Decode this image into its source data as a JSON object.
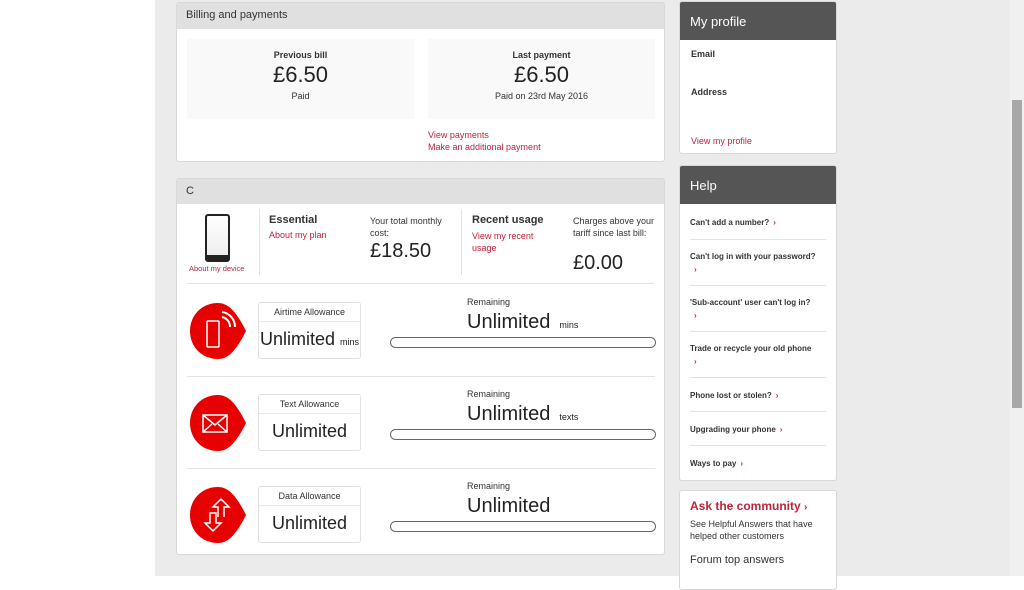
{
  "billing": {
    "title": "Billing and payments",
    "previous_bill": {
      "label": "Previous bill",
      "amount": "£6.50",
      "status": "Paid"
    },
    "last_payment": {
      "label": "Last payment",
      "amount": "£6.50",
      "status": "Paid on 23rd May 2016"
    },
    "links": [
      "View payments",
      "Make an additional payment"
    ]
  },
  "plan": {
    "title": "C",
    "device_link": "About my device",
    "plan_name": "Essential",
    "plan_link": "About my plan",
    "monthly_cost_label": "Your total monthly cost:",
    "monthly_cost": "£18.50",
    "recent_usage_title": "Recent usage",
    "recent_usage_link": "View my recent usage",
    "charges_label": "Charges above your tariff since last bill:",
    "charges": "£0.00",
    "allowances": [
      {
        "label": "Airtime Allowance",
        "value": "Unlimited",
        "unit": "mins",
        "remaining_label": "Remaining",
        "remaining": "Unlimited",
        "remaining_unit": "mins",
        "icon": "phone-signal-icon"
      },
      {
        "label": "Text Allowance",
        "value": "Unlimited",
        "unit": "",
        "remaining_label": "Remaining",
        "remaining": "Unlimited",
        "remaining_unit": "texts",
        "icon": "envelope-icon"
      },
      {
        "label": "Data Allowance",
        "value": "Unlimited",
        "unit": "",
        "remaining_label": "Remaining",
        "remaining": "Unlimited",
        "remaining_unit": "",
        "icon": "data-arrows-icon"
      }
    ]
  },
  "profile": {
    "title": "My profile",
    "email_label": "Email",
    "address_label": "Address",
    "link": "View my profile"
  },
  "help": {
    "title": "Help",
    "items": [
      "Can't add a number?",
      "Can't log in with your password?",
      "'Sub-account' user can't log in?",
      "Trade or recycle your old phone",
      "Phone lost or stolen?",
      "Upgrading your phone",
      "Ways to pay"
    ]
  },
  "community": {
    "title": "Ask the community",
    "text": "See Helpful Answers that have helped other customers",
    "forum": "Forum top answers"
  },
  "colors": {
    "accent": "#e60000",
    "link": "#c0223a",
    "dark_header": "#555555"
  }
}
